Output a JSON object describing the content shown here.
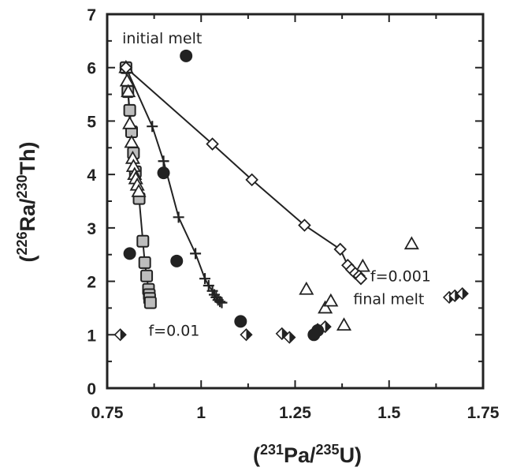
{
  "chart_data": {
    "type": "scatter",
    "xlabel": {
      "pre": "(",
      "sup1": "231",
      "mid": "Pa/",
      "sup2": "235",
      "post": "U)"
    },
    "ylabel": {
      "pre": "(",
      "sup1": "226",
      "mid": "Ra/",
      "sup2": "230",
      "post": "Th)"
    },
    "xlim": [
      0.75,
      1.75
    ],
    "ylim": [
      0,
      7
    ],
    "xticks": [
      "0.75",
      "1",
      "1.25",
      "1.5",
      "1.75"
    ],
    "yticks": [
      "0",
      "1",
      "2",
      "3",
      "4",
      "5",
      "6",
      "7"
    ],
    "grid": false,
    "annotations": [
      {
        "text": "initial melt",
        "x": 0.79,
        "y": 6.45
      },
      {
        "text": "f=0.001",
        "x": 1.45,
        "y": 2.0
      },
      {
        "text": "final melt",
        "x": 1.405,
        "y": 1.57
      },
      {
        "text": "f=0.01",
        "x": 0.86,
        "y": 0.98
      }
    ],
    "series": [
      {
        "marker": "square",
        "line": true,
        "x": [
          0.8,
          0.805,
          0.81,
          0.815,
          0.82,
          0.825,
          0.835,
          0.845,
          0.85,
          0.855,
          0.86,
          0.862,
          0.863,
          0.865
        ],
        "y": [
          6.0,
          5.55,
          5.2,
          4.8,
          4.4,
          4.05,
          3.55,
          2.75,
          2.35,
          2.1,
          1.85,
          1.75,
          1.68,
          1.6
        ]
      },
      {
        "marker": "triangle-open",
        "line": true,
        "x": [
          0.8,
          0.803,
          0.806,
          0.81,
          0.815,
          0.818,
          0.82,
          0.823,
          0.826,
          0.83,
          0.834
        ],
        "y": [
          6.0,
          5.75,
          5.55,
          4.95,
          4.6,
          4.3,
          4.15,
          4.0,
          3.92,
          3.8,
          3.68
        ]
      },
      {
        "marker": "triangle-open",
        "line": false,
        "x": [
          1.33,
          1.345,
          1.43,
          1.56,
          1.28,
          1.38
        ],
        "y": [
          1.5,
          1.63,
          2.28,
          2.7,
          1.85,
          1.18
        ]
      },
      {
        "marker": "plus",
        "line": true,
        "x": [
          0.8,
          0.87,
          0.9,
          0.94,
          0.985,
          1.01,
          1.02,
          1.03,
          1.035,
          1.04,
          1.045,
          1.05,
          1.055
        ],
        "y": [
          6.0,
          4.9,
          4.25,
          3.2,
          2.52,
          2.05,
          1.92,
          1.82,
          1.75,
          1.7,
          1.65,
          1.62,
          1.6
        ]
      },
      {
        "marker": "diamond-open",
        "line": true,
        "x": [
          0.8,
          1.03,
          1.135,
          1.275,
          1.37,
          1.39,
          1.4,
          1.41,
          1.42,
          1.425
        ],
        "y": [
          6.0,
          4.57,
          3.9,
          3.05,
          2.6,
          2.3,
          2.22,
          2.15,
          2.1,
          2.05
        ]
      },
      {
        "marker": "diamond-half",
        "line": false,
        "x": [
          0.785,
          1.12,
          1.215,
          1.235,
          1.31,
          1.33,
          1.66,
          1.675,
          1.695
        ],
        "y": [
          1.0,
          1.0,
          1.02,
          0.95,
          1.1,
          1.15,
          1.7,
          1.73,
          1.77
        ]
      },
      {
        "marker": "circle",
        "line": false,
        "x": [
          0.96,
          0.9,
          0.81,
          0.935,
          1.105,
          1.3,
          1.31
        ],
        "y": [
          6.22,
          4.03,
          2.52,
          2.38,
          1.25,
          1.0,
          1.08
        ]
      }
    ]
  },
  "style": {
    "marker_fill_gray": "#bdbdbd",
    "ink": "#222222"
  }
}
